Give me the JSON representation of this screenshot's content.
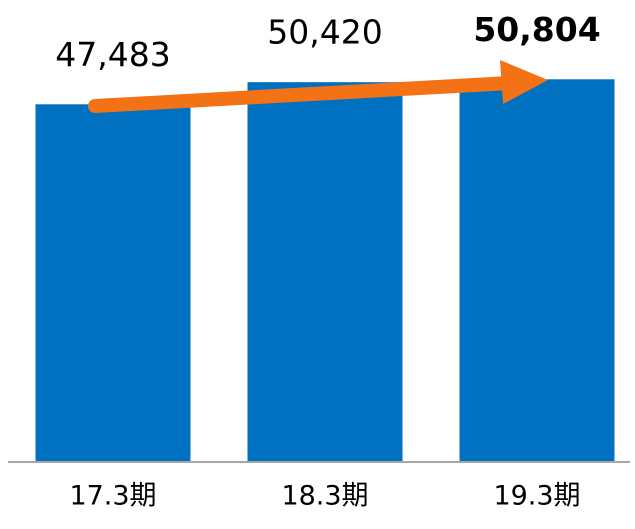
{
  "chart_data": {
    "type": "bar",
    "categories": [
      "17.3期",
      "18.3期",
      "19.3期"
    ],
    "values": [
      47483,
      50420,
      50804
    ],
    "value_labels": [
      "47,483",
      "50,420",
      "50,804"
    ],
    "color": "#0070c0",
    "ylim": [
      0,
      60000
    ]
  }
}
